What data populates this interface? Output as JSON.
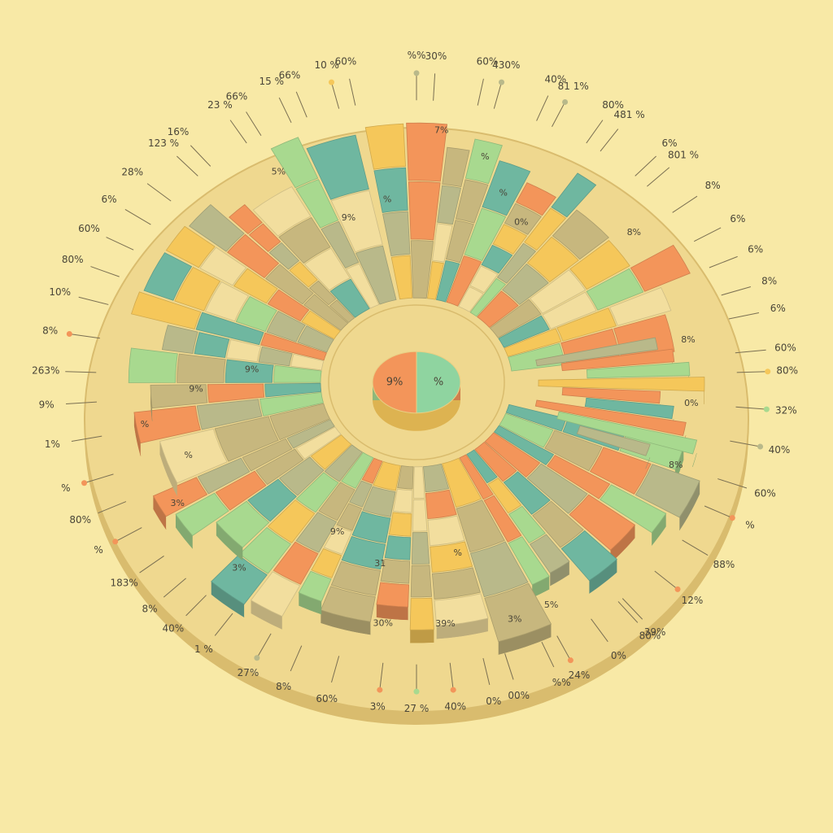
{
  "chart_data": {
    "type": "pie",
    "title": "",
    "colors": {
      "background": "#F8E9A6",
      "plate": "#EFD88F",
      "plate_edge": "#D9BC6E",
      "orange": "#F3955A",
      "green": "#A8D98F",
      "olive": "#B9B98A",
      "khaki": "#C7B77E",
      "yellow": "#F5C75A",
      "teal": "#6FB7A0",
      "cream": "#F2DE9E",
      "label": "#4A4538",
      "leader": "#7A6F52"
    },
    "center_pie": {
      "labels": [
        "%",
        "9%"
      ],
      "values": [
        50,
        50
      ],
      "colors": [
        "#8FD4A0",
        "#F3955A"
      ]
    },
    "perimeter_labels": [
      {
        "text": "%%",
        "angle": -90,
        "dot": "olive"
      },
      {
        "text": "30%",
        "angle": -87
      },
      {
        "text": "60%",
        "angle": -79
      },
      {
        "text": "430%",
        "angle": -76,
        "dot": "olive"
      },
      {
        "text": "40%",
        "angle": -68
      },
      {
        "text": "81 1%",
        "angle": -65,
        "dot": "olive"
      },
      {
        "text": "80%",
        "angle": -58
      },
      {
        "text": "481 %",
        "angle": -55
      },
      {
        "text": "6%",
        "angle": -47
      },
      {
        "text": "801 %",
        "angle": -44
      },
      {
        "text": "8%",
        "angle": -37
      },
      {
        "text": "6%",
        "angle": -30
      },
      {
        "text": "6%",
        "angle": -24
      },
      {
        "text": "8%",
        "angle": -18
      },
      {
        "text": "6%",
        "angle": -13
      },
      {
        "text": "60%",
        "angle": -6
      },
      {
        "text": "80%",
        "angle": -2,
        "dot": "yellow"
      },
      {
        "text": "32%",
        "angle": 5,
        "dot": "green"
      },
      {
        "text": "40%",
        "angle": 12,
        "dot": "olive"
      },
      {
        "text": "60%",
        "angle": 20
      },
      {
        "text": "%",
        "angle": 26,
        "dot": "orange"
      },
      {
        "text": "88%",
        "angle": 34
      },
      {
        "text": "12%",
        "angle": 42,
        "dot": "orange"
      },
      {
        "text": "39%",
        "angle": 50
      },
      {
        "text": "80%",
        "angle": 51
      },
      {
        "text": "0%",
        "angle": 57
      },
      {
        "text": "24%",
        "angle": 64,
        "dot": "orange"
      },
      {
        "text": "%%",
        "angle": 67
      },
      {
        "text": "00%",
        "angle": 74
      },
      {
        "text": "0%",
        "angle": 78
      },
      {
        "text": "40%",
        "angle": 84,
        "dot": "orange"
      },
      {
        "text": "27 %",
        "angle": 90,
        "dot": "green"
      },
      {
        "text": "3%",
        "angle": 96,
        "dot": "orange"
      },
      {
        "text": "60%",
        "angle": 104
      },
      {
        "text": "8%",
        "angle": 111
      },
      {
        "text": "27%",
        "angle": 117,
        "dot": "olive"
      },
      {
        "text": "1 %",
        "angle": 125
      },
      {
        "text": "40%",
        "angle": 131
      },
      {
        "text": "8%",
        "angle": 136
      },
      {
        "text": "183%",
        "angle": 142
      },
      {
        "text": "%",
        "angle": 149,
        "dot": "orange"
      },
      {
        "text": "80%",
        "angle": 155
      },
      {
        "text": "%",
        "angle": 161,
        "dot": "orange"
      },
      {
        "text": "1%",
        "angle": 169
      },
      {
        "text": "9%",
        "angle": 176
      },
      {
        "text": "263%",
        "angle": 182
      },
      {
        "text": "8%",
        "angle": 189,
        "dot": "orange"
      },
      {
        "text": "10%",
        "angle": 196
      },
      {
        "text": "80%",
        "angle": 202
      },
      {
        "text": "60%",
        "angle": 208
      },
      {
        "text": "6%",
        "angle": 214
      },
      {
        "text": "28%",
        "angle": 220
      },
      {
        "text": "123 %",
        "angle": 227
      },
      {
        "text": "16%",
        "angle": 230
      },
      {
        "text": "23 %",
        "angle": 238
      },
      {
        "text": "66%",
        "angle": 241
      },
      {
        "text": "15 %",
        "angle": 247
      },
      {
        "text": "66%",
        "angle": 250
      },
      {
        "text": "10 %",
        "angle": 256,
        "dot": "yellow"
      },
      {
        "text": "60%",
        "angle": 259
      }
    ],
    "segment_labels": [
      {
        "text": "5%",
        "angle": 240,
        "ring": 0.85
      },
      {
        "text": "9%",
        "angle": 250,
        "ring": 0.5
      },
      {
        "text": "%",
        "angle": 262,
        "ring": 0.55
      },
      {
        "text": "7%",
        "angle": 275,
        "ring": 0.9
      },
      {
        "text": "%",
        "angle": 285,
        "ring": 0.8
      },
      {
        "text": "%",
        "angle": 292,
        "ring": 0.65
      },
      {
        "text": "0%",
        "angle": 300,
        "ring": 0.55
      },
      {
        "text": "8%",
        "angle": 322,
        "ring": 0.85
      },
      {
        "text": "8%",
        "angle": 350,
        "ring": 0.85
      },
      {
        "text": "0%",
        "angle": 5,
        "ring": 0.85
      },
      {
        "text": "8%",
        "angle": 20,
        "ring": 0.85
      },
      {
        "text": "9%",
        "angle": 185,
        "ring": 0.35
      },
      {
        "text": "9%",
        "angle": 178,
        "ring": 0.6
      },
      {
        "text": "%",
        "angle": 170,
        "ring": 0.85
      },
      {
        "text": "%",
        "angle": 160,
        "ring": 0.7
      },
      {
        "text": "3%",
        "angle": 150,
        "ring": 0.85
      },
      {
        "text": "3%",
        "angle": 130,
        "ring": 0.85
      },
      {
        "text": "9%",
        "angle": 115,
        "ring": 0.45
      },
      {
        "text": "31",
        "angle": 100,
        "ring": 0.55
      },
      {
        "text": "30%",
        "angle": 97,
        "ring": 0.85
      },
      {
        "text": "39%",
        "angle": 84,
        "ring": 0.85
      },
      {
        "text": "%",
        "angle": 78,
        "ring": 0.5
      },
      {
        "text": "5%",
        "angle": 62,
        "ring": 0.9
      },
      {
        "text": "3%",
        "angle": 70,
        "ring": 0.9
      }
    ]
  }
}
